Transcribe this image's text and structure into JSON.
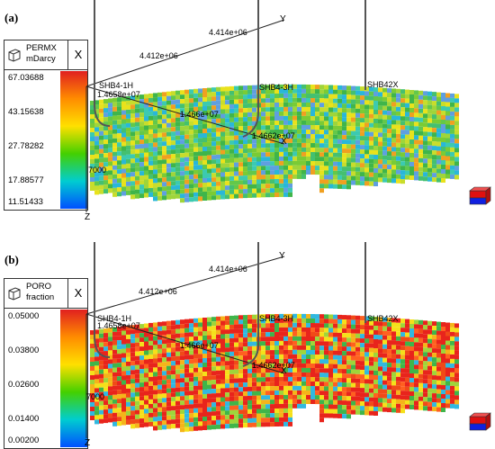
{
  "panels": [
    {
      "label": "(a)",
      "legend": {
        "title_line1": "PERMX",
        "title_line2": "mDarcy",
        "close_label": "X",
        "ticks": [
          "67.03688",
          "43.15638",
          "27.78282",
          "17.88577",
          "11.51433"
        ],
        "scale_colors": [
          "#e02020",
          "#ff8c00",
          "#ffe000",
          "#44d000",
          "#00cdd0",
          "#0050ff"
        ]
      },
      "axes": {
        "y_label": "Y",
        "x_label": "X",
        "z_label": "Z",
        "y_ticks": [
          "4.414e+06",
          "4.412e+06"
        ],
        "x_ticks": [
          "1.4658e+07",
          "1.466e+07",
          "1.4662e+07"
        ],
        "z_tick": "7000"
      },
      "wells": [
        "SHB4-1H",
        "SHB4-3H",
        "SHB42X"
      ],
      "cell_palette": [
        "#3fb54a",
        "#7acb35",
        "#9fd53a",
        "#c8dd2c",
        "#e9e21c",
        "#3ccab0",
        "#29b7d8",
        "#5f9fe0",
        "#f0a020",
        "#63c84a",
        "#44c070"
      ]
    },
    {
      "label": "(b)",
      "legend": {
        "title_line1": "PORO",
        "title_line2": "fraction",
        "close_label": "X",
        "ticks": [
          "0.05000",
          "0.03800",
          "0.02600",
          "0.01400",
          "0.00200"
        ],
        "scale_colors": [
          "#e02020",
          "#ff8c00",
          "#ffe000",
          "#44d000",
          "#00cdd0",
          "#0050ff"
        ]
      },
      "axes": {
        "y_label": "Y",
        "x_label": "X",
        "z_label": "Z",
        "y_ticks": [
          "4.414e+06",
          "4.412e+06"
        ],
        "x_ticks": [
          "1.4658e+07",
          "1.466e+07",
          "1.4662e+07"
        ],
        "z_tick": "7000"
      },
      "wells": [
        "SHB4-1H",
        "SHB4-3H",
        "SHB42X"
      ],
      "cell_palette": [
        "#e8241c",
        "#f04a18",
        "#e8241c",
        "#f5b41a",
        "#f5e01a",
        "#9fd53a",
        "#3fb54a",
        "#e8241c",
        "#ff6020",
        "#31b8e0",
        "#e8241c"
      ]
    }
  ]
}
